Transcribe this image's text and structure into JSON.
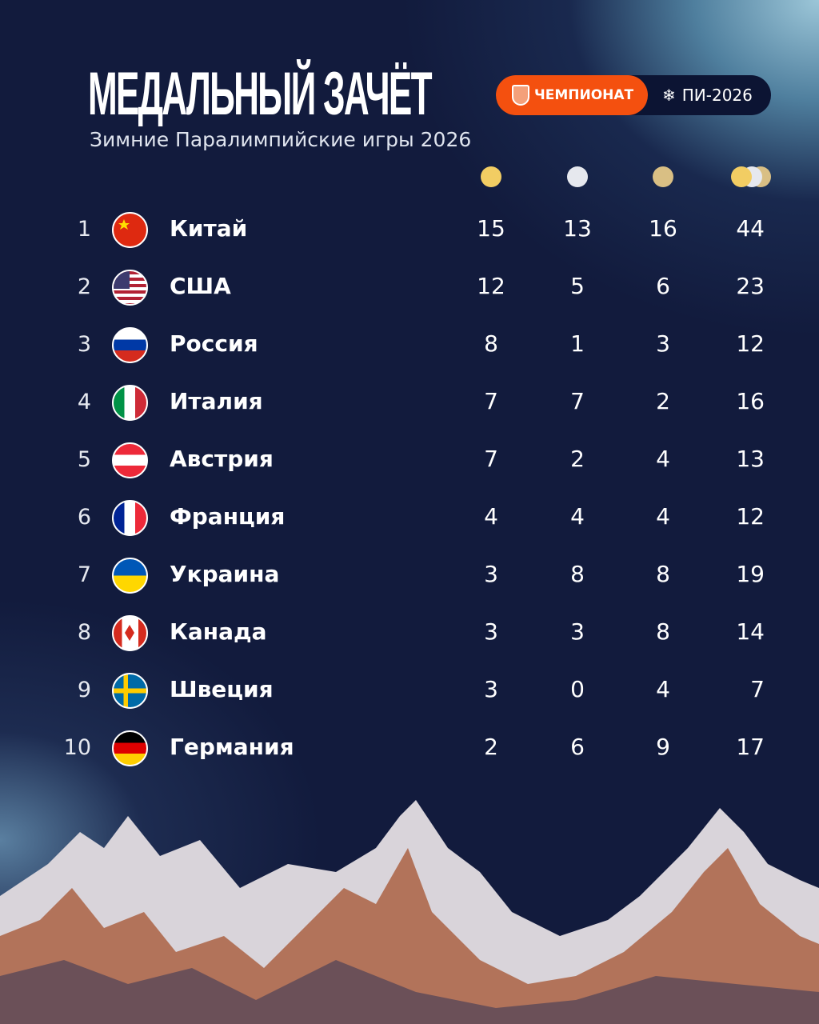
{
  "header": {
    "title": "МЕДАЛЬНЫЙ ЗАЧЁТ",
    "subtitle": "Зимние Паралимпийские игры 2026",
    "brand": "ЧЕМПИОНАТ",
    "event": "ПИ-2026",
    "event_icon": "snowflake-icon"
  },
  "colors": {
    "gold": "#f2cd63",
    "silver": "#e6e8ee",
    "bronze": "#d9bf84",
    "brand": "#f4500f",
    "background": "#121b3d"
  },
  "columns": [
    "gold",
    "silver",
    "bronze",
    "total"
  ],
  "rows": [
    {
      "rank": "1",
      "country": "Китай",
      "gold": "15",
      "silver": "13",
      "bronze": "16",
      "total": "44"
    },
    {
      "rank": "2",
      "country": "США",
      "gold": "12",
      "silver": "5",
      "bronze": "6",
      "total": "23"
    },
    {
      "rank": "3",
      "country": "Россия",
      "gold": "8",
      "silver": "1",
      "bronze": "3",
      "total": "12"
    },
    {
      "rank": "4",
      "country": "Италия",
      "gold": "7",
      "silver": "7",
      "bronze": "2",
      "total": "16"
    },
    {
      "rank": "5",
      "country": "Австрия",
      "gold": "7",
      "silver": "2",
      "bronze": "4",
      "total": "13"
    },
    {
      "rank": "6",
      "country": "Франция",
      "gold": "4",
      "silver": "4",
      "bronze": "4",
      "total": "12"
    },
    {
      "rank": "7",
      "country": "Украина",
      "gold": "3",
      "silver": "8",
      "bronze": "8",
      "total": "19"
    },
    {
      "rank": "8",
      "country": "Канада",
      "gold": "3",
      "silver": "3",
      "bronze": "8",
      "total": "14"
    },
    {
      "rank": "9",
      "country": "Швеция",
      "gold": "3",
      "silver": "0",
      "bronze": "4",
      "total": "7"
    },
    {
      "rank": "10",
      "country": "Германия",
      "gold": "2",
      "silver": "6",
      "bronze": "9",
      "total": "17"
    }
  ]
}
